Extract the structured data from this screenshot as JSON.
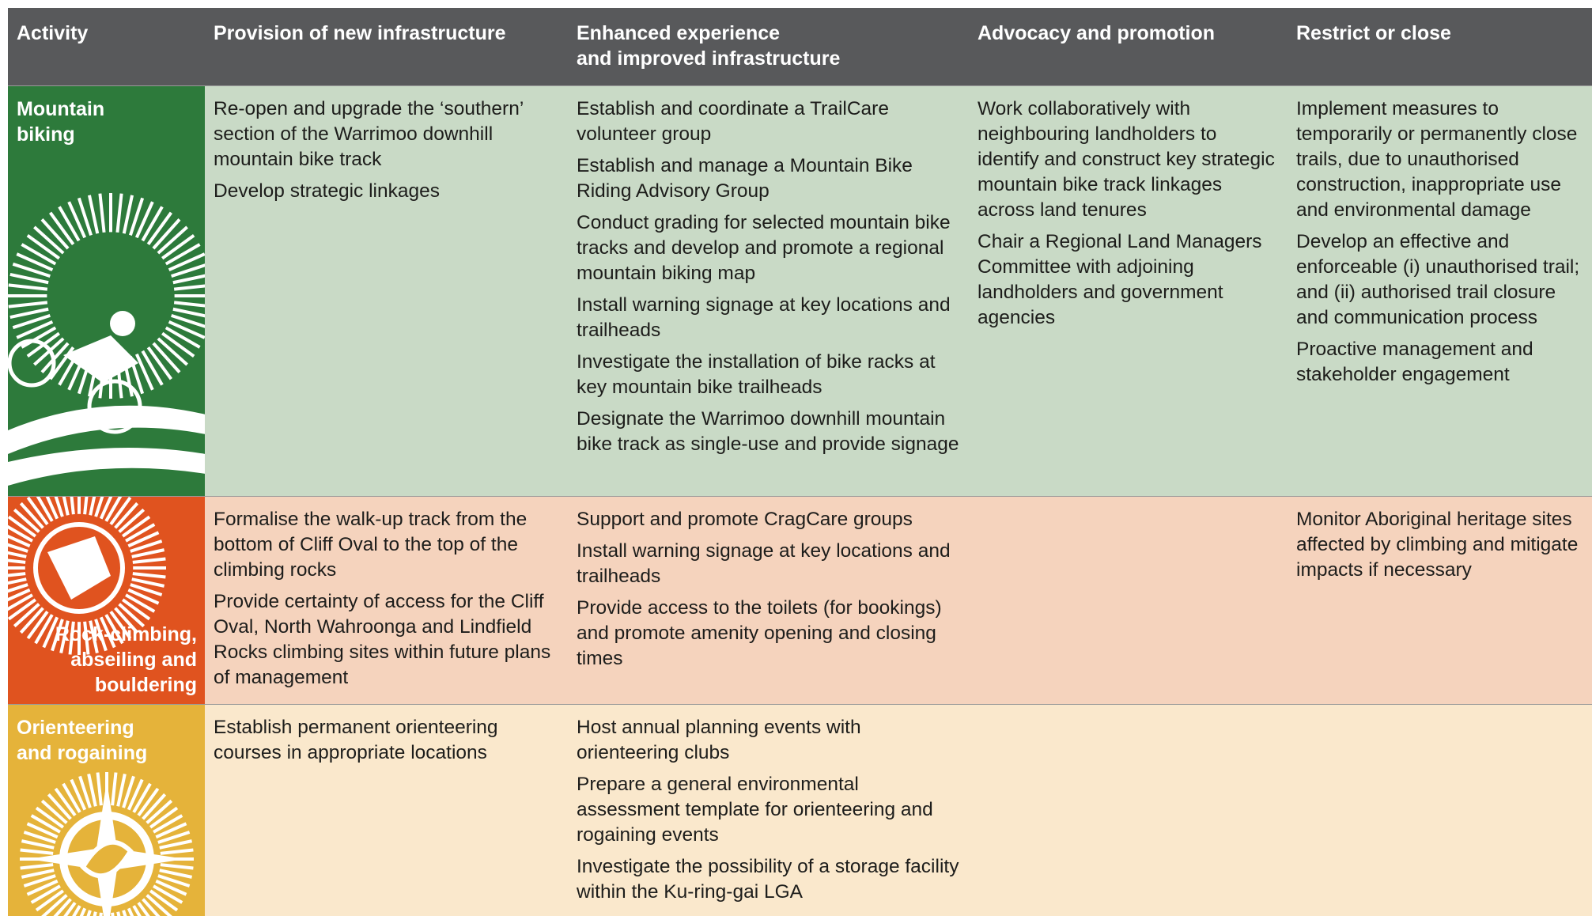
{
  "table": {
    "header": [
      "Activity",
      "Provision of new infrastructure",
      "Enhanced experience\nand improved infrastructure",
      "Advocacy and promotion",
      "Restrict or close"
    ],
    "rows": [
      {
        "activity": "Mountain biking",
        "cells": [
          [
            "Re-open and upgrade the ‘southern’ section of the Warrimoo downhill mountain bike track",
            "Develop strategic linkages"
          ],
          [
            "Establish and coordinate a TrailCare volunteer group",
            "Establish and manage a Mountain Bike Riding Advisory Group",
            "Conduct grading for selected mountain bike tracks and develop and promote a regional mountain biking map",
            "Install warning signage at key locations and trailheads",
            "Investigate the installation of bike racks at key mountain bike trailheads",
            "Designate the Warrimoo downhill mountain bike track as single-use and provide signage"
          ],
          [
            "Work collaboratively with neighbouring landholders to identify and construct key strategic mountain bike track linkages across land tenures",
            "Chair a Regional Land Managers Committee with adjoining landholders and government agencies"
          ],
          [
            "Implement measures to temporarily or permanently close trails, due to unauthorised construction, inappropriate use and environmental damage",
            "Develop an effective and enforceable (i) unauthorised trail; and (ii) authorised trail closure and communication process",
            "Proactive management and stakeholder engagement"
          ]
        ]
      },
      {
        "activity": "Rock-climbing, abseiling and bouldering",
        "cells": [
          [
            "Formalise the walk-up track from the bottom of Cliff Oval to the top of the climbing rocks",
            "Provide certainty of access for the Cliff Oval, North Wahroonga and Lindfield Rocks climbing sites within future plans of management"
          ],
          [
            "Support and promote CragCare groups",
            "Install warning signage at key locations and trailheads",
            "Provide access to the toilets (for bookings) and promote amenity opening and closing times"
          ],
          [],
          [
            "Monitor Aboriginal heritage sites affected by climbing and mitigate impacts if necessary"
          ]
        ]
      },
      {
        "activity": "Orienteering and rogaining",
        "cells": [
          [
            "Establish permanent orienteering courses in appropriate locations"
          ],
          [
            "Host annual planning events with orienteering clubs",
            "Prepare a general environmental assessment template for orienteering and rogaining events",
            "Investigate the possibility of a storage facility within the Ku-ring-gai LGA"
          ],
          [],
          []
        ]
      }
    ]
  }
}
